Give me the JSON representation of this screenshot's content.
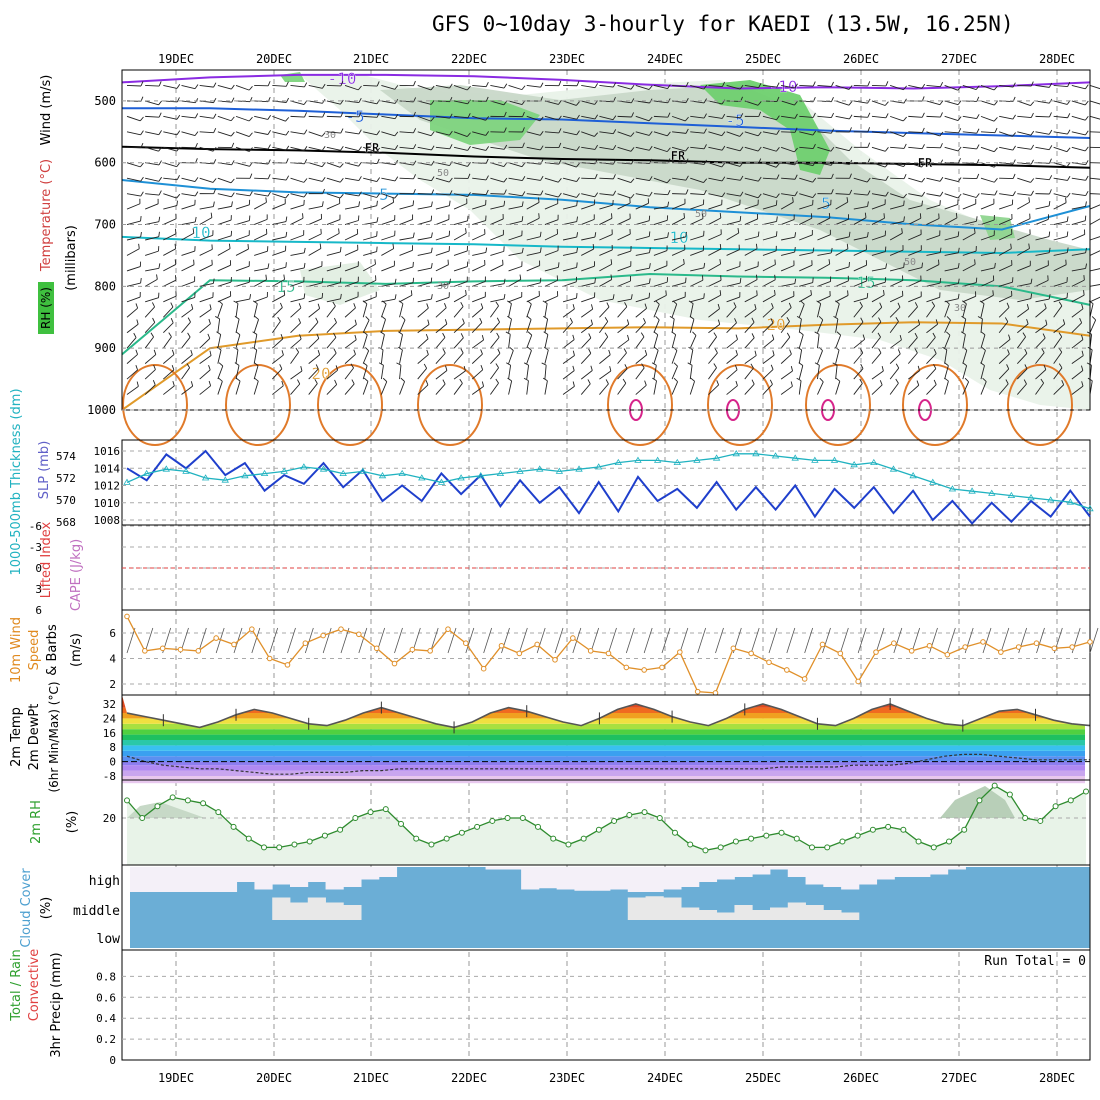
{
  "title": "GFS 0~10day 3-hourly for KAEDI (13.5W, 16.25N)",
  "chart_data": [
    {
      "panel": "upper-air",
      "type": "contour",
      "xticks": [
        "19DEC",
        "20DEC",
        "21DEC",
        "22DEC",
        "23DEC",
        "24DEC",
        "25DEC",
        "26DEC",
        "27DEC",
        "28DEC"
      ],
      "ylabel_rh": "RH (%)",
      "ylabel_temp": "Temperature (°C)",
      "ylabel_wind": "Wind (m/s)",
      "ylabel_units": "(millibars)",
      "yticks": [
        "500",
        "600",
        "700",
        "800",
        "900",
        "1000"
      ],
      "ylim": [
        450,
        1000
      ],
      "temp_contour_labels": [
        "-10",
        "-10",
        "-5",
        "-5",
        "FR",
        "FR",
        "FR",
        "5",
        "5",
        "10",
        "10",
        "15",
        "15",
        "20",
        "20"
      ],
      "rh_contour_labels": [
        "50",
        "50",
        "30",
        "30",
        "30",
        "50"
      ],
      "isotherms": [
        {
          "label": "-10",
          "color": "#8a2be2",
          "p": [
            470,
            462,
            458,
            458,
            460,
            466,
            474,
            480,
            478,
            480,
            476,
            470
          ]
        },
        {
          "label": "-5",
          "color": "#1e5fd6",
          "p": [
            512,
            512,
            516,
            522,
            528,
            530,
            536,
            542,
            548,
            552,
            556,
            560
          ]
        },
        {
          "label": "FR",
          "color": "#000000",
          "p": [
            574,
            578,
            580,
            584,
            590,
            594,
            596,
            600,
            600,
            602,
            604,
            608
          ]
        },
        {
          "label": "5",
          "color": "#1e90d6",
          "p": [
            628,
            642,
            648,
            650,
            652,
            660,
            672,
            680,
            688,
            700,
            708,
            670
          ]
        },
        {
          "label": "10",
          "color": "#17b8c8",
          "p": [
            720,
            726,
            728,
            730,
            732,
            736,
            738,
            740,
            742,
            744,
            746,
            740
          ]
        },
        {
          "label": "15",
          "color": "#2ab98a",
          "p": [
            910,
            790,
            792,
            796,
            792,
            790,
            780,
            784,
            786,
            790,
            800,
            830
          ]
        },
        {
          "label": "20",
          "color": "#e09a2a",
          "p": [
            1000,
            900,
            880,
            872,
            870,
            868,
            866,
            868,
            862,
            858,
            860,
            880
          ]
        }
      ]
    },
    {
      "panel": "slp-thickness",
      "type": "line",
      "ylabel_left": "1000-500mb Thickness (dm)",
      "ylabel_right": "SLP (mb)",
      "thickness_ticks": [
        "574",
        "572",
        "570",
        "568"
      ],
      "slp_ticks": [
        "1016",
        "1014",
        "1012",
        "1010",
        "1008"
      ],
      "series": [
        {
          "name": "SLP",
          "color": "#1f3fcc",
          "values": [
            1014,
            1012.6,
            1015.6,
            1014,
            1016,
            1013.2,
            1014.6,
            1011.4,
            1013.2,
            1012.2,
            1014.6,
            1011.8,
            1013.8,
            1010.2,
            1012,
            1010.2,
            1013.4,
            1011,
            1013.2,
            1009.6,
            1012.6,
            1010,
            1011.8,
            1008.8,
            1012.4,
            1009,
            1013,
            1010.2,
            1011.6,
            1009.4,
            1012.4,
            1009.2,
            1011.8,
            1009.2,
            1012,
            1008.4,
            1011.6,
            1009.4,
            1011.8,
            1008.8,
            1011.4,
            1008,
            1010.2,
            1007.6,
            1010,
            1007.8,
            1010.2,
            1008.4,
            1011.4,
            1008.4
          ]
        },
        {
          "name": "Thickness",
          "color": "#20b2c0",
          "values": [
            571.6,
            572.4,
            572.8,
            572.6,
            572,
            571.8,
            572.2,
            572.4,
            572.6,
            573,
            572.8,
            572.4,
            572.6,
            572.2,
            572.4,
            572,
            571.6,
            572,
            572.2,
            572.4,
            572.6,
            572.8,
            572.6,
            572.8,
            573,
            573.4,
            573.6,
            573.6,
            573.4,
            573.6,
            573.8,
            574.2,
            574.2,
            574,
            573.8,
            573.6,
            573.6,
            573.2,
            573.4,
            572.8,
            572.2,
            571.6,
            571,
            570.8,
            570.6,
            570.4,
            570.2,
            570,
            569.8,
            569.2
          ]
        }
      ]
    },
    {
      "panel": "instability",
      "type": "line",
      "ylabel_li": "Lifted Index",
      "ylabel_cape": "CAPE (J/kg)",
      "yticks": [
        "-6",
        "-3",
        "0",
        "3",
        "6"
      ],
      "ylim": [
        -6,
        6
      ],
      "zero_line": 0
    },
    {
      "panel": "wind10m",
      "type": "line",
      "ylabel": "10m Wind Speed & Barbs (m/s)",
      "yticks": [
        "6",
        "4",
        "2"
      ],
      "ylim": [
        1,
        8
      ],
      "values": [
        7.3,
        4.6,
        4.8,
        4.7,
        4.6,
        5.6,
        5.1,
        6.3,
        4.0,
        3.5,
        5.2,
        5.8,
        6.3,
        5.9,
        4.8,
        3.6,
        4.7,
        4.6,
        6.3,
        5.2,
        3.2,
        5.0,
        4.4,
        5.1,
        3.9,
        5.6,
        4.6,
        4.4,
        3.3,
        3.1,
        3.3,
        4.5,
        1.4,
        1.3,
        4.8,
        4.4,
        3.7,
        3.1,
        2.4,
        5.1,
        4.4,
        2.2,
        4.5,
        5.2,
        4.6,
        5.0,
        4.3,
        4.9,
        5.3,
        4.5,
        4.9,
        5.2,
        4.8,
        4.9,
        5.3
      ]
    },
    {
      "panel": "temperature2m",
      "type": "area",
      "ylabel_temp": "2m Temp",
      "ylabel_dew": "2m DewPt",
      "ylabel_range": "(6hr Min/Max) (°C)",
      "yticks": [
        "32",
        "24",
        "16",
        "8",
        "0",
        "-8"
      ],
      "ylim": [
        -12,
        36
      ],
      "temp": [
        27,
        25,
        23,
        21,
        19,
        22,
        26,
        29,
        27,
        24,
        21,
        20,
        23,
        27,
        30,
        27,
        24,
        21,
        19,
        22,
        27,
        30,
        28,
        25,
        22,
        20,
        24,
        29,
        32,
        29,
        25,
        22,
        20,
        24,
        29,
        32,
        29,
        25,
        21,
        20,
        24,
        29,
        32,
        28,
        24,
        21,
        20,
        24,
        28,
        29,
        26,
        23,
        21,
        20
      ],
      "dewpoint": [
        3,
        0,
        -2,
        -3,
        -4,
        -4,
        -5,
        -6,
        -7,
        -7,
        -6,
        -6,
        -6,
        -5,
        -5,
        -4,
        -4,
        -4,
        -4,
        -4,
        -4,
        -4,
        -4,
        -4,
        -4,
        -4,
        -4,
        -4,
        -4,
        -4,
        -4,
        -4,
        -4,
        -4,
        -4,
        -4,
        -3,
        -3,
        -3,
        -3,
        -2,
        -2,
        -2,
        -1,
        1,
        3,
        4,
        4,
        3,
        2,
        1,
        1,
        1,
        1
      ]
    },
    {
      "panel": "rh2m",
      "type": "line",
      "ylabel": "2m RH (%)",
      "yticks": [
        "20"
      ],
      "ylim": [
        4,
        34
      ],
      "values": [
        26,
        20,
        24,
        27,
        26,
        25,
        22,
        17,
        13,
        10,
        10,
        11,
        12,
        14,
        16,
        20,
        22,
        23,
        18,
        13,
        11,
        13,
        15,
        17,
        19,
        20,
        20,
        17,
        13,
        11,
        13,
        16,
        19,
        21,
        22,
        20,
        15,
        11,
        9,
        10,
        12,
        13,
        14,
        15,
        13,
        10,
        10,
        12,
        14,
        16,
        17,
        16,
        12,
        10,
        12,
        16,
        26,
        31,
        28,
        20,
        19,
        24,
        26,
        29
      ]
    },
    {
      "panel": "cloud",
      "type": "heatmap",
      "ylabel": "Cloud Cover (%)",
      "ylevels": [
        "high",
        "middle",
        "low"
      ],
      "high_cover": [
        0,
        0,
        0,
        0,
        0,
        0,
        0.4,
        0.1,
        0.3,
        0.2,
        0.4,
        0.1,
        0.2,
        0.5,
        0.6,
        1,
        1,
        1,
        1,
        1,
        0.9,
        0.9,
        0.1,
        0.15,
        0.1,
        0.05,
        0.05,
        0.1,
        0,
        0,
        0.1,
        0.2,
        0.4,
        0.5,
        0.6,
        0.7,
        0.9,
        0.6,
        0.3,
        0.2,
        0.1,
        0.3,
        0.5,
        0.6,
        0.6,
        0.7,
        0.9,
        1,
        1,
        1,
        1,
        1,
        1,
        1
      ],
      "middle_cover": [
        1,
        1,
        1,
        1,
        1,
        1,
        1,
        1,
        0.1,
        0.3,
        0.1,
        0.3,
        0.4,
        1,
        1,
        1,
        1,
        1,
        1,
        1,
        1,
        1,
        1,
        1,
        1,
        1,
        1,
        1,
        0.1,
        0.05,
        0.1,
        0.5,
        0.6,
        0.7,
        0.4,
        0.6,
        0.5,
        0.3,
        0.4,
        0.6,
        0.7,
        1,
        1,
        1,
        1,
        1,
        1,
        1,
        1,
        1,
        1,
        1,
        1,
        1
      ]
    },
    {
      "panel": "precip",
      "type": "bar",
      "ylabel_total": "Total / Rain",
      "ylabel_conv": "Convective",
      "ylabel": "3hr Precip (mm)",
      "yticks": [
        "0.8",
        "0.6",
        "0.4",
        "0.2",
        "0"
      ],
      "ylim": [
        0,
        1
      ],
      "run_total": "Run Total = 0",
      "values": [
        0,
        0,
        0,
        0,
        0,
        0,
        0,
        0,
        0,
        0,
        0,
        0,
        0,
        0,
        0,
        0,
        0,
        0,
        0,
        0,
        0,
        0,
        0,
        0,
        0,
        0,
        0,
        0,
        0,
        0,
        0,
        0,
        0,
        0,
        0,
        0,
        0,
        0,
        0,
        0,
        0,
        0,
        0,
        0,
        0,
        0,
        0,
        0,
        0,
        0,
        0,
        0,
        0,
        0
      ]
    }
  ]
}
